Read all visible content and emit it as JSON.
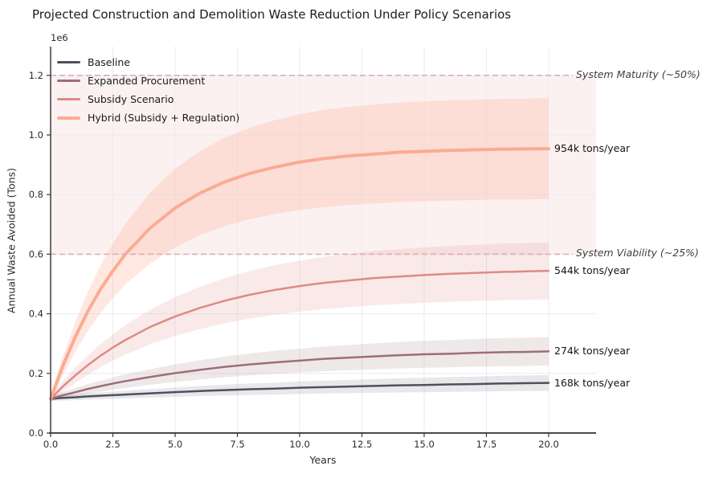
{
  "title": "Projected Construction and Demolition Waste Reduction Under Policy Scenarios",
  "offset_text": "1e6",
  "chart_data": {
    "type": "line",
    "title": "Projected Construction and Demolition Waste Reduction Under Policy Scenarios",
    "xlabel": "Years",
    "ylabel": "Annual Waste Avoided (Tons)",
    "values_unit": "1e6 tons",
    "xlim": [
      0,
      21.9
    ],
    "ylim": [
      0,
      1.295
    ],
    "grid": true,
    "legend_position": "upper-left",
    "x_ticks": [
      0.0,
      2.5,
      5.0,
      7.5,
      10.0,
      12.5,
      15.0,
      17.5,
      20.0
    ],
    "x_tick_labels": [
      "0.0",
      "2.5",
      "5.0",
      "7.5",
      "10.0",
      "12.5",
      "15.0",
      "17.5",
      "20.0"
    ],
    "y_ticks": [
      0.0,
      0.2,
      0.4,
      0.6,
      0.8,
      1.0,
      1.2
    ],
    "y_tick_labels": [
      "0.0",
      "0.2",
      "0.4",
      "0.6",
      "0.8",
      "1.0",
      "1.2"
    ],
    "x": [
      0,
      0.5,
      1,
      1.5,
      2,
      2.5,
      3,
      4,
      5,
      6,
      7,
      8,
      9,
      10,
      11,
      12,
      13,
      14,
      15,
      16,
      17,
      18,
      19,
      20
    ],
    "series": [
      {
        "name": "Baseline",
        "color": "#50505d",
        "linewidth": 2.5,
        "band_color": "rgba(95,95,110,0.14)",
        "band_frac": 0.35,
        "band_base": 0.008,
        "end_label": "168k tons/year",
        "values": [
          0.115,
          0.118,
          0.12,
          0.123,
          0.125,
          0.127,
          0.129,
          0.133,
          0.137,
          0.141,
          0.144,
          0.147,
          0.149,
          0.152,
          0.154,
          0.156,
          0.158,
          0.16,
          0.161,
          0.163,
          0.164,
          0.166,
          0.167,
          0.168
        ]
      },
      {
        "name": "Expanded Procurement",
        "color": "#9d6e77",
        "linewidth": 2.5,
        "band_color": "rgba(158,110,119,0.16)",
        "band_frac": 0.25,
        "band_base": 0.008,
        "end_label": "274k tons/year",
        "values": [
          0.115,
          0.127,
          0.137,
          0.148,
          0.157,
          0.166,
          0.174,
          0.188,
          0.201,
          0.212,
          0.222,
          0.23,
          0.237,
          0.243,
          0.249,
          0.253,
          0.257,
          0.261,
          0.264,
          0.266,
          0.269,
          0.271,
          0.272,
          0.274
        ]
      },
      {
        "name": "Subsidy Scenario",
        "color": "#df8a84",
        "linewidth": 2.5,
        "band_color": "rgba(223,138,132,0.18)",
        "band_frac": 0.2,
        "band_base": 0.01,
        "end_label": "544k tons/year",
        "values": [
          0.115,
          0.157,
          0.194,
          0.228,
          0.259,
          0.287,
          0.312,
          0.356,
          0.391,
          0.42,
          0.444,
          0.464,
          0.48,
          0.493,
          0.504,
          0.512,
          0.52,
          0.525,
          0.53,
          0.534,
          0.537,
          0.54,
          0.542,
          0.544
        ]
      },
      {
        "name": "Hybrid (Subsidy + Regulation)",
        "color": "#fbab92",
        "linewidth": 4,
        "band_color": "rgba(250,171,146,0.28)",
        "band_frac": 0.19,
        "band_base": 0.01,
        "end_label": "954k tons/year",
        "values": [
          0.115,
          0.227,
          0.324,
          0.409,
          0.482,
          0.544,
          0.6,
          0.688,
          0.755,
          0.805,
          0.843,
          0.871,
          0.892,
          0.909,
          0.921,
          0.93,
          0.936,
          0.942,
          0.945,
          0.948,
          0.95,
          0.952,
          0.953,
          0.954
        ]
      }
    ],
    "ref_lines": [
      {
        "value": 1.2,
        "label": "System Maturity (~50%)",
        "color": "#dcaeb4"
      },
      {
        "value": 0.6,
        "label": "System Viability (~25%)",
        "color": "#dcaeb4"
      }
    ],
    "target_zone": {
      "from": 0.6,
      "to": 1.2,
      "color": "rgba(238,180,175,0.18)"
    }
  }
}
